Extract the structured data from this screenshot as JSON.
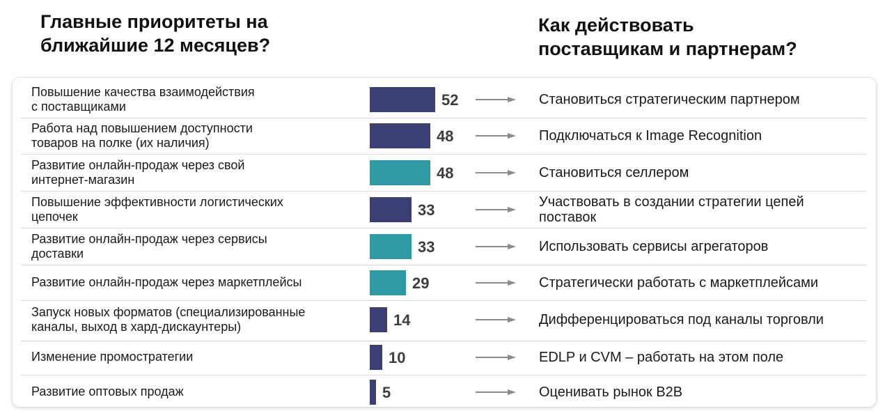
{
  "headings": {
    "left": [
      "Главные приоритеты на",
      "ближайшие 12 месяцев?"
    ],
    "right": [
      "Как действовать",
      "поставщикам и партнерам?"
    ]
  },
  "colors": {
    "navy": "#3c3f76",
    "teal": "#2e9aa3",
    "arrow": "#8c8c8c"
  },
  "chart_data": {
    "type": "bar",
    "orientation": "horizontal",
    "categories": [
      "Повышение качества взаимодействия\nс поставщиками",
      "Работа над повышением доступности\nтоваров на полке (их наличия)",
      "Развитие онлайн-продаж через свой\nинтернет-магазин",
      "Повышение эффективности логистических\nцепочек",
      "Развитие онлайн-продаж через сервисы\nдоставки",
      "Развитие онлайн-продаж через маркетплейсы",
      "Запуск новых форматов (специализированные\nканалы, выход в хард-дискаунтеры)",
      "Изменение промостратегии",
      "Развитие оптовых продаж"
    ],
    "values": [
      52,
      48,
      48,
      33,
      33,
      29,
      14,
      10,
      5
    ],
    "bar_colors": [
      "navy",
      "navy",
      "teal",
      "navy",
      "teal",
      "teal",
      "navy",
      "navy",
      "navy"
    ],
    "actions": [
      "Становиться стратегическим партнером",
      "Подключаться к Image Recognition",
      "Становиться селлером",
      "Участвовать в создании стратегии цепей\nпоставок",
      "Использовать сервисы агрегаторов",
      "Стратегически работать с маркетплейсами",
      "Дифференцироваться под каналы торговли",
      "EDLP и CVM – работать на этом поле",
      "Оценивать рынок B2B"
    ]
  }
}
